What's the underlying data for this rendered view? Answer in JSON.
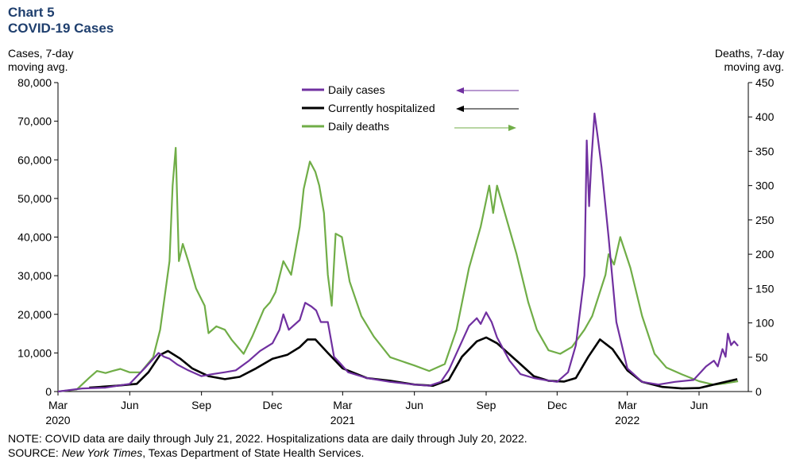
{
  "header": {
    "title_line1": "Chart 5",
    "title_line2": "COVID-19 Cases",
    "left_axis_title_1": "Cases, 7-day",
    "left_axis_title_2": "moving avg.",
    "right_axis_title_1": "Deaths, 7-day",
    "right_axis_title_2": "moving avg."
  },
  "footer": {
    "note": "NOTE: COVID data are daily through  July 21, 2022. Hospitalizations data are daily through  July 20, 2022.",
    "source_prefix": "SOURCE: ",
    "source_italic": "New York Times",
    "source_rest": ", Texas Department of State Health Services."
  },
  "chart_data": {
    "type": "line",
    "x_axis": {
      "ticks": [
        {
          "label": "Mar",
          "sub": "2020",
          "date": "2020-03-01"
        },
        {
          "label": "Jun",
          "sub": "",
          "date": "2020-06-01"
        },
        {
          "label": "Sep",
          "sub": "",
          "date": "2020-09-01"
        },
        {
          "label": "Dec",
          "sub": "",
          "date": "2020-12-01"
        },
        {
          "label": "Mar",
          "sub": "2021",
          "date": "2021-03-01"
        },
        {
          "label": "Jun",
          "sub": "",
          "date": "2021-06-01"
        },
        {
          "label": "Sep",
          "sub": "",
          "date": "2021-09-01"
        },
        {
          "label": "Dec",
          "sub": "",
          "date": "2021-12-01"
        },
        {
          "label": "Mar",
          "sub": "2022",
          "date": "2022-03-01"
        },
        {
          "label": "Jun",
          "sub": "",
          "date": "2022-06-01"
        }
      ],
      "range": [
        "2020-03-01",
        "2022-07-21"
      ]
    },
    "y_left": {
      "ylim": [
        0,
        80000
      ],
      "ticks": [
        0,
        10000,
        20000,
        30000,
        40000,
        50000,
        60000,
        70000,
        80000
      ],
      "tick_labels": [
        "0",
        "10,000",
        "20,000",
        "30,000",
        "40,000",
        "50,000",
        "60,000",
        "70,000",
        "80,000"
      ]
    },
    "y_right": {
      "ylim": [
        0,
        450
      ],
      "ticks": [
        0,
        50,
        100,
        150,
        200,
        250,
        300,
        350,
        400,
        450
      ],
      "tick_labels": [
        "0",
        "50",
        "100",
        "150",
        "200",
        "250",
        "300",
        "350",
        "400",
        "450"
      ]
    },
    "grid": false,
    "legend_position": "top-center",
    "series": [
      {
        "name": "Daily cases",
        "axis": "left",
        "color": "#7030a0",
        "legend_arrow": "left",
        "points": [
          [
            "2020-03-01",
            0
          ],
          [
            "2020-04-01",
            800
          ],
          [
            "2020-05-01",
            1000
          ],
          [
            "2020-06-01",
            2000
          ],
          [
            "2020-06-20",
            6000
          ],
          [
            "2020-07-08",
            10000
          ],
          [
            "2020-07-15",
            9000
          ],
          [
            "2020-07-22",
            8500
          ],
          [
            "2020-08-01",
            7000
          ],
          [
            "2020-08-15",
            5500
          ],
          [
            "2020-09-01",
            4000
          ],
          [
            "2020-09-15",
            4500
          ],
          [
            "2020-10-01",
            5000
          ],
          [
            "2020-10-15",
            5500
          ],
          [
            "2020-11-01",
            8000
          ],
          [
            "2020-11-15",
            10500
          ],
          [
            "2020-12-01",
            12500
          ],
          [
            "2020-12-10",
            16000
          ],
          [
            "2020-12-15",
            20000
          ],
          [
            "2020-12-22",
            16000
          ],
          [
            "2021-01-05",
            18500
          ],
          [
            "2021-01-12",
            23000
          ],
          [
            "2021-01-20",
            22000
          ],
          [
            "2021-01-26",
            21000
          ],
          [
            "2021-02-01",
            18000
          ],
          [
            "2021-02-10",
            18000
          ],
          [
            "2021-02-18",
            9000
          ],
          [
            "2021-02-25",
            7500
          ],
          [
            "2021-03-08",
            5000
          ],
          [
            "2021-04-01",
            3500
          ],
          [
            "2021-05-01",
            2500
          ],
          [
            "2021-06-01",
            1800
          ],
          [
            "2021-06-20",
            1500
          ],
          [
            "2021-07-05",
            2500
          ],
          [
            "2021-07-15",
            5500
          ],
          [
            "2021-08-01",
            13000
          ],
          [
            "2021-08-10",
            17000
          ],
          [
            "2021-08-20",
            19000
          ],
          [
            "2021-08-25",
            17500
          ],
          [
            "2021-09-01",
            20500
          ],
          [
            "2021-09-08",
            18000
          ],
          [
            "2021-09-15",
            14000
          ],
          [
            "2021-10-01",
            8000
          ],
          [
            "2021-10-15",
            4500
          ],
          [
            "2021-11-01",
            3500
          ],
          [
            "2021-11-15",
            3000
          ],
          [
            "2021-12-01",
            2500
          ],
          [
            "2021-12-15",
            5000
          ],
          [
            "2021-12-25",
            12000
          ],
          [
            "2022-01-05",
            30000
          ],
          [
            "2022-01-08",
            65000
          ],
          [
            "2022-01-11",
            48000
          ],
          [
            "2022-01-14",
            60000
          ],
          [
            "2022-01-18",
            72000
          ],
          [
            "2022-01-22",
            66000
          ],
          [
            "2022-01-27",
            58000
          ],
          [
            "2022-02-05",
            40000
          ],
          [
            "2022-02-15",
            18000
          ],
          [
            "2022-03-01",
            6000
          ],
          [
            "2022-03-20",
            2500
          ],
          [
            "2022-04-10",
            1800
          ],
          [
            "2022-05-01",
            2500
          ],
          [
            "2022-05-25",
            3000
          ],
          [
            "2022-06-10",
            6500
          ],
          [
            "2022-06-20",
            8000
          ],
          [
            "2022-06-25",
            6500
          ],
          [
            "2022-07-01",
            11000
          ],
          [
            "2022-07-05",
            9000
          ],
          [
            "2022-07-08",
            15000
          ],
          [
            "2022-07-12",
            12000
          ],
          [
            "2022-07-16",
            13000
          ],
          [
            "2022-07-21",
            11800
          ]
        ]
      },
      {
        "name": "Currently hospitalized",
        "axis": "left",
        "color": "#000000",
        "legend_arrow": "left",
        "points": [
          [
            "2020-04-10",
            1000
          ],
          [
            "2020-05-15",
            1500
          ],
          [
            "2020-06-10",
            2000
          ],
          [
            "2020-06-25",
            5000
          ],
          [
            "2020-07-10",
            9500
          ],
          [
            "2020-07-20",
            10500
          ],
          [
            "2020-08-05",
            8500
          ],
          [
            "2020-08-20",
            6000
          ],
          [
            "2020-09-10",
            4000
          ],
          [
            "2020-10-01",
            3200
          ],
          [
            "2020-10-20",
            3800
          ],
          [
            "2020-11-10",
            6000
          ],
          [
            "2020-12-01",
            8500
          ],
          [
            "2020-12-20",
            9500
          ],
          [
            "2021-01-05",
            11500
          ],
          [
            "2021-01-15",
            13500
          ],
          [
            "2021-01-25",
            13500
          ],
          [
            "2021-02-10",
            10000
          ],
          [
            "2021-03-01",
            6000
          ],
          [
            "2021-04-01",
            3500
          ],
          [
            "2021-05-01",
            2800
          ],
          [
            "2021-06-01",
            1800
          ],
          [
            "2021-06-25",
            1500
          ],
          [
            "2021-07-15",
            3000
          ],
          [
            "2021-08-01",
            9000
          ],
          [
            "2021-08-20",
            13000
          ],
          [
            "2021-09-01",
            14000
          ],
          [
            "2021-09-15",
            12500
          ],
          [
            "2021-10-10",
            8000
          ],
          [
            "2021-11-01",
            4000
          ],
          [
            "2021-11-20",
            2800
          ],
          [
            "2021-12-10",
            2600
          ],
          [
            "2021-12-25",
            3500
          ],
          [
            "2022-01-10",
            9000
          ],
          [
            "2022-01-25",
            13500
          ],
          [
            "2022-02-10",
            11000
          ],
          [
            "2022-03-01",
            5500
          ],
          [
            "2022-03-20",
            2500
          ],
          [
            "2022-04-15",
            1200
          ],
          [
            "2022-05-10",
            800
          ],
          [
            "2022-06-01",
            900
          ],
          [
            "2022-06-20",
            1800
          ],
          [
            "2022-07-20",
            3200
          ]
        ]
      },
      {
        "name": "Daily deaths",
        "axis": "right",
        "color": "#70ad47",
        "legend_arrow": "right",
        "points": [
          [
            "2020-03-01",
            0
          ],
          [
            "2020-03-25",
            3
          ],
          [
            "2020-04-10",
            20
          ],
          [
            "2020-04-20",
            30
          ],
          [
            "2020-05-01",
            27
          ],
          [
            "2020-05-10",
            30
          ],
          [
            "2020-05-20",
            33
          ],
          [
            "2020-06-01",
            28
          ],
          [
            "2020-06-15",
            28
          ],
          [
            "2020-07-01",
            50
          ],
          [
            "2020-07-10",
            90
          ],
          [
            "2020-07-22",
            190
          ],
          [
            "2020-07-26",
            300
          ],
          [
            "2020-07-30",
            355
          ],
          [
            "2020-08-03",
            190
          ],
          [
            "2020-08-08",
            215
          ],
          [
            "2020-08-15",
            190
          ],
          [
            "2020-08-25",
            150
          ],
          [
            "2020-09-05",
            125
          ],
          [
            "2020-09-10",
            85
          ],
          [
            "2020-09-20",
            95
          ],
          [
            "2020-10-01",
            90
          ],
          [
            "2020-10-10",
            75
          ],
          [
            "2020-10-25",
            55
          ],
          [
            "2020-11-05",
            80
          ],
          [
            "2020-11-20",
            120
          ],
          [
            "2020-11-28",
            130
          ],
          [
            "2020-12-05",
            145
          ],
          [
            "2020-12-15",
            190
          ],
          [
            "2020-12-25",
            170
          ],
          [
            "2021-01-05",
            240
          ],
          [
            "2021-01-10",
            295
          ],
          [
            "2021-01-18",
            335
          ],
          [
            "2021-01-25",
            320
          ],
          [
            "2021-01-30",
            300
          ],
          [
            "2021-02-05",
            260
          ],
          [
            "2021-02-10",
            170
          ],
          [
            "2021-02-15",
            125
          ],
          [
            "2021-02-20",
            230
          ],
          [
            "2021-02-28",
            225
          ],
          [
            "2021-03-10",
            160
          ],
          [
            "2021-03-25",
            110
          ],
          [
            "2021-04-10",
            80
          ],
          [
            "2021-05-01",
            50
          ],
          [
            "2021-06-01",
            38
          ],
          [
            "2021-06-20",
            30
          ],
          [
            "2021-07-10",
            40
          ],
          [
            "2021-07-25",
            90
          ],
          [
            "2021-08-10",
            180
          ],
          [
            "2021-08-25",
            240
          ],
          [
            "2021-09-05",
            300
          ],
          [
            "2021-09-10",
            260
          ],
          [
            "2021-09-15",
            300
          ],
          [
            "2021-09-25",
            260
          ],
          [
            "2021-10-10",
            200
          ],
          [
            "2021-10-25",
            130
          ],
          [
            "2021-11-05",
            90
          ],
          [
            "2021-11-20",
            60
          ],
          [
            "2021-12-05",
            55
          ],
          [
            "2021-12-20",
            65
          ],
          [
            "2022-01-05",
            90
          ],
          [
            "2022-01-15",
            110
          ],
          [
            "2022-02-01",
            170
          ],
          [
            "2022-02-05",
            200
          ],
          [
            "2022-02-12",
            185
          ],
          [
            "2022-02-20",
            225
          ],
          [
            "2022-03-05",
            180
          ],
          [
            "2022-03-20",
            110
          ],
          [
            "2022-04-05",
            55
          ],
          [
            "2022-04-20",
            35
          ],
          [
            "2022-05-10",
            25
          ],
          [
            "2022-06-01",
            15
          ],
          [
            "2022-06-20",
            10
          ],
          [
            "2022-07-05",
            12
          ],
          [
            "2022-07-21",
            15
          ]
        ]
      }
    ]
  }
}
